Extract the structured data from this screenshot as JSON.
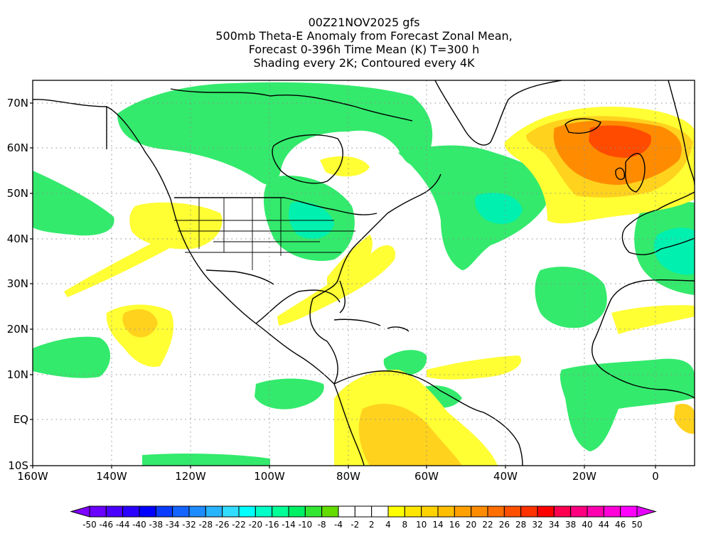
{
  "title_lines": [
    "00Z21NOV2025 gfs",
    "500mb Theta-E Anomaly from Forecast Zonal Mean,",
    "Forecast 0-396h Time Mean (K) T=300 h",
    "Shading every 2K; Contoured every 4K"
  ],
  "lat_labels": [
    "70N",
    "60N",
    "50N",
    "40N",
    "30N",
    "20N",
    "10N",
    "EQ",
    "10S"
  ],
  "lon_labels": [
    "160W",
    "140W",
    "120W",
    "100W",
    "80W",
    "60W",
    "40W",
    "20W",
    "0"
  ],
  "colorbar": {
    "labels": [
      "-50",
      "-46",
      "-44",
      "-40",
      "-38",
      "-34",
      "-32",
      "-28",
      "-26",
      "-22",
      "-20",
      "-16",
      "-14",
      "-10",
      "-8",
      "-4",
      "-2",
      "2",
      "4",
      "8",
      "10",
      "14",
      "16",
      "20",
      "22",
      "26",
      "28",
      "32",
      "34",
      "38",
      "40",
      "44",
      "46",
      "50"
    ],
    "colors": [
      "#8000ff",
      "#6a00ff",
      "#4a00ff",
      "#2a00ff",
      "#0000ff",
      "#0a3cff",
      "#1464ff",
      "#1e8cff",
      "#28b4ff",
      "#32dcff",
      "#00ffff",
      "#00ffc8",
      "#00ff96",
      "#00f064",
      "#32e632",
      "#64dc00",
      "#ffffff",
      "#ffffff",
      "#ffffff",
      "#ffff00",
      "#ffe600",
      "#ffd200",
      "#ffbe00",
      "#ffa000",
      "#ff8c00",
      "#ff6e00",
      "#ff5000",
      "#ff3200",
      "#ff0000",
      "#ff0050",
      "#ff0080",
      "#ff00b0",
      "#ff00d8",
      "#ff00ff",
      "#e600ff"
    ]
  },
  "colors": {
    "cool": "#33ea6c",
    "cool_strong": "#00f0b0",
    "warm": "#ffff33",
    "warm2": "#ffd21e",
    "warm3": "#ff8c00",
    "hot": "#ff4b00"
  }
}
